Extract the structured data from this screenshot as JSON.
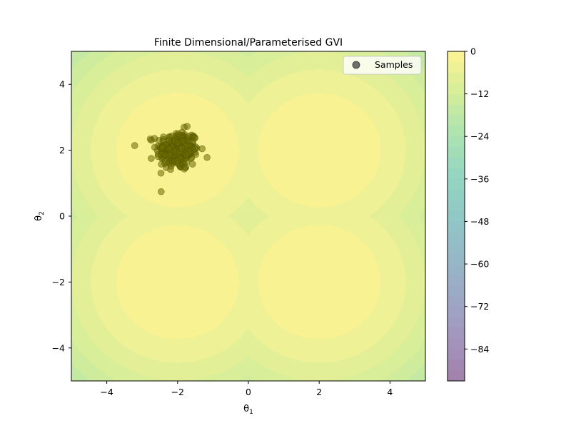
{
  "chart_data": {
    "type": "contour",
    "title": "Finite Dimensional/Parameterised GVI",
    "xlabel": {
      "base": "θ",
      "sub": "1"
    },
    "ylabel": {
      "base": "θ",
      "sub": "2"
    },
    "xlim": [
      -5,
      5
    ],
    "ylim": [
      -5,
      5
    ],
    "x_ticks": [
      -4,
      -2,
      0,
      2,
      4
    ],
    "y_ticks": [
      -4,
      -2,
      0,
      2,
      4
    ],
    "x_tick_labels": [
      "−4",
      "−2",
      "0",
      "2",
      "4"
    ],
    "y_tick_labels": [
      "−4",
      "−2",
      "0",
      "2",
      "4"
    ],
    "contour": {
      "colormap": "viridis",
      "alpha": 0.5,
      "modes": [
        [
          -2,
          2
        ],
        [
          2,
          2
        ],
        [
          -2,
          -2
        ],
        [
          2,
          -2
        ]
      ],
      "zmin": -93,
      "zmax": 0,
      "level_step": 3
    },
    "colorbar": {
      "ticks": [
        0,
        -12,
        -24,
        -36,
        -48,
        -60,
        -72,
        -84
      ],
      "tick_labels": [
        "0",
        "−12",
        "−24",
        "−36",
        "−48",
        "−60",
        "−72",
        "−84"
      ],
      "range": [
        -93,
        0
      ]
    },
    "series": [
      {
        "name": "Samples",
        "type": "scatter",
        "color": "#6b6b00",
        "center": [
          -2,
          2
        ],
        "spread": 0.3,
        "count": 250
      }
    ],
    "legend": {
      "position": "top-right",
      "entries": [
        "Samples"
      ]
    }
  }
}
